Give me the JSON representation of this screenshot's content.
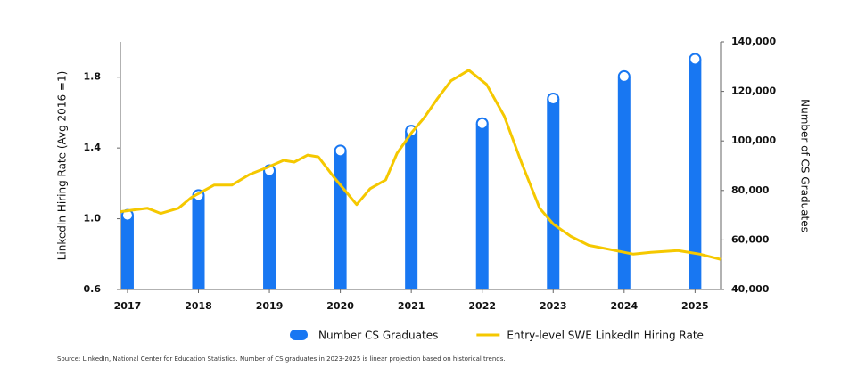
{
  "chart_data": {
    "type": "bar-line",
    "source": "Source: LinkedIn, National Center for Education Statistics. Number of CS graduates in 2023-2025 is linear projection based on historical trends.",
    "y_label": "LinkedIn Hiring Rate (Avg 2016 =1)",
    "y2_label": "Number of CS Graduates",
    "xlim": [
      2016.9,
      2025.36
    ],
    "xticks": [
      2017,
      2018,
      2019,
      2020,
      2021,
      2022,
      2023,
      2024,
      2025
    ],
    "ylim": [
      0.6,
      2.0
    ],
    "yticks": [
      0.6,
      {
        "value": 1,
        "label": "1.0"
      },
      1.4,
      1.8
    ],
    "y2lim": [
      40000,
      140000
    ],
    "y2ticks": [
      {
        "value": 40000,
        "label": "40,000"
      },
      {
        "value": 60000,
        "label": "60,000"
      },
      {
        "value": 80000,
        "label": "80,000"
      },
      {
        "value": 100000,
        "label": "100,000"
      },
      {
        "value": 120000,
        "label": "120,000"
      },
      {
        "value": 140000,
        "label": "140,000"
      }
    ],
    "series": [
      {
        "name": "Number CS Graduates",
        "color": "#1877f2",
        "kind": "bar",
        "axis": "y2",
        "x": [
          2017,
          2018,
          2019,
          2020,
          2021,
          2022,
          2023,
          2024,
          2025
        ],
        "values": [
          70000,
          78000,
          88000,
          96000,
          104000,
          107000,
          117000,
          126000,
          133000
        ]
      },
      {
        "name": "Entry-level SWE LinkedIn Hiring Rate",
        "color": "#f5c800",
        "kind": "line",
        "x": [
          2016.9,
          2017.09,
          2017.28,
          2017.47,
          2017.72,
          2017.9,
          2018.22,
          2018.47,
          2018.72,
          2018.97,
          2019.2,
          2019.35,
          2019.54,
          2019.69,
          2019.92,
          2020.23,
          2020.42,
          2020.64,
          2020.8,
          2021.01,
          2021.18,
          2021.37,
          2021.56,
          2021.81,
          2022.06,
          2022.31,
          2022.56,
          2022.81,
          2023.0,
          2023.25,
          2023.5,
          2023.88,
          2024.13,
          2024.38,
          2024.76,
          2025.07,
          2025.36
        ],
        "values": [
          1.04,
          1.05,
          1.06,
          1.03,
          1.06,
          1.12,
          1.19,
          1.19,
          1.25,
          1.29,
          1.33,
          1.32,
          1.36,
          1.35,
          1.23,
          1.08,
          1.17,
          1.22,
          1.37,
          1.49,
          1.57,
          1.68,
          1.78,
          1.84,
          1.76,
          1.58,
          1.31,
          1.06,
          0.97,
          0.9,
          0.85,
          0.82,
          0.8,
          0.81,
          0.82,
          0.8,
          0.77
        ]
      }
    ]
  }
}
